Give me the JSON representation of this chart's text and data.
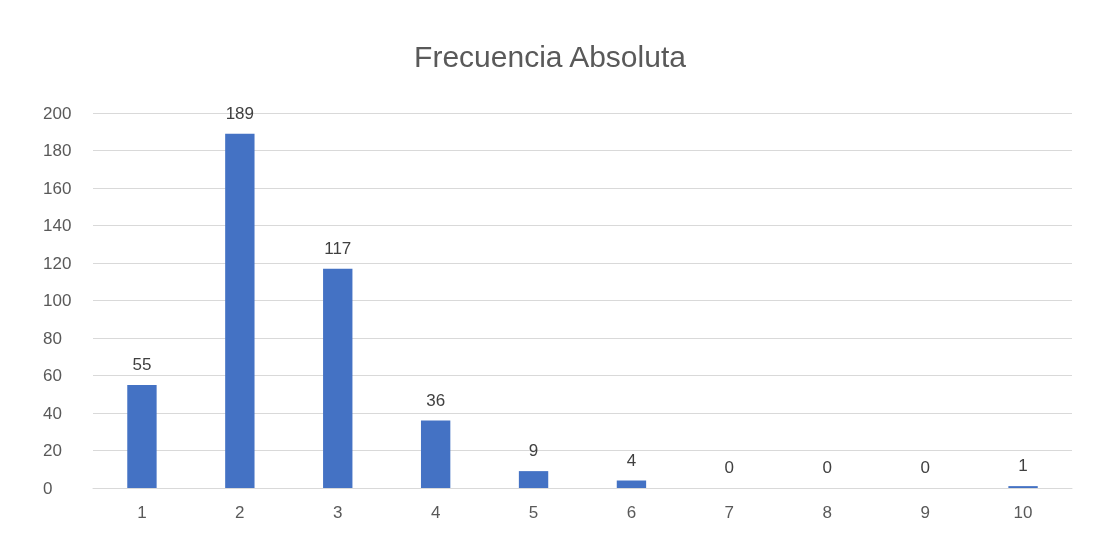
{
  "chart_data": {
    "type": "bar",
    "title": "Frecuencia Absoluta",
    "categories": [
      "1",
      "2",
      "3",
      "4",
      "5",
      "6",
      "7",
      "8",
      "9",
      "10"
    ],
    "values": [
      55,
      189,
      117,
      36,
      9,
      4,
      0,
      0,
      0,
      1
    ],
    "color": "#4472c4",
    "ylim": [
      0,
      200
    ],
    "yticks": [
      0,
      20,
      40,
      60,
      80,
      100,
      120,
      140,
      160,
      180,
      200
    ],
    "grid": "y",
    "data_labels": true
  }
}
